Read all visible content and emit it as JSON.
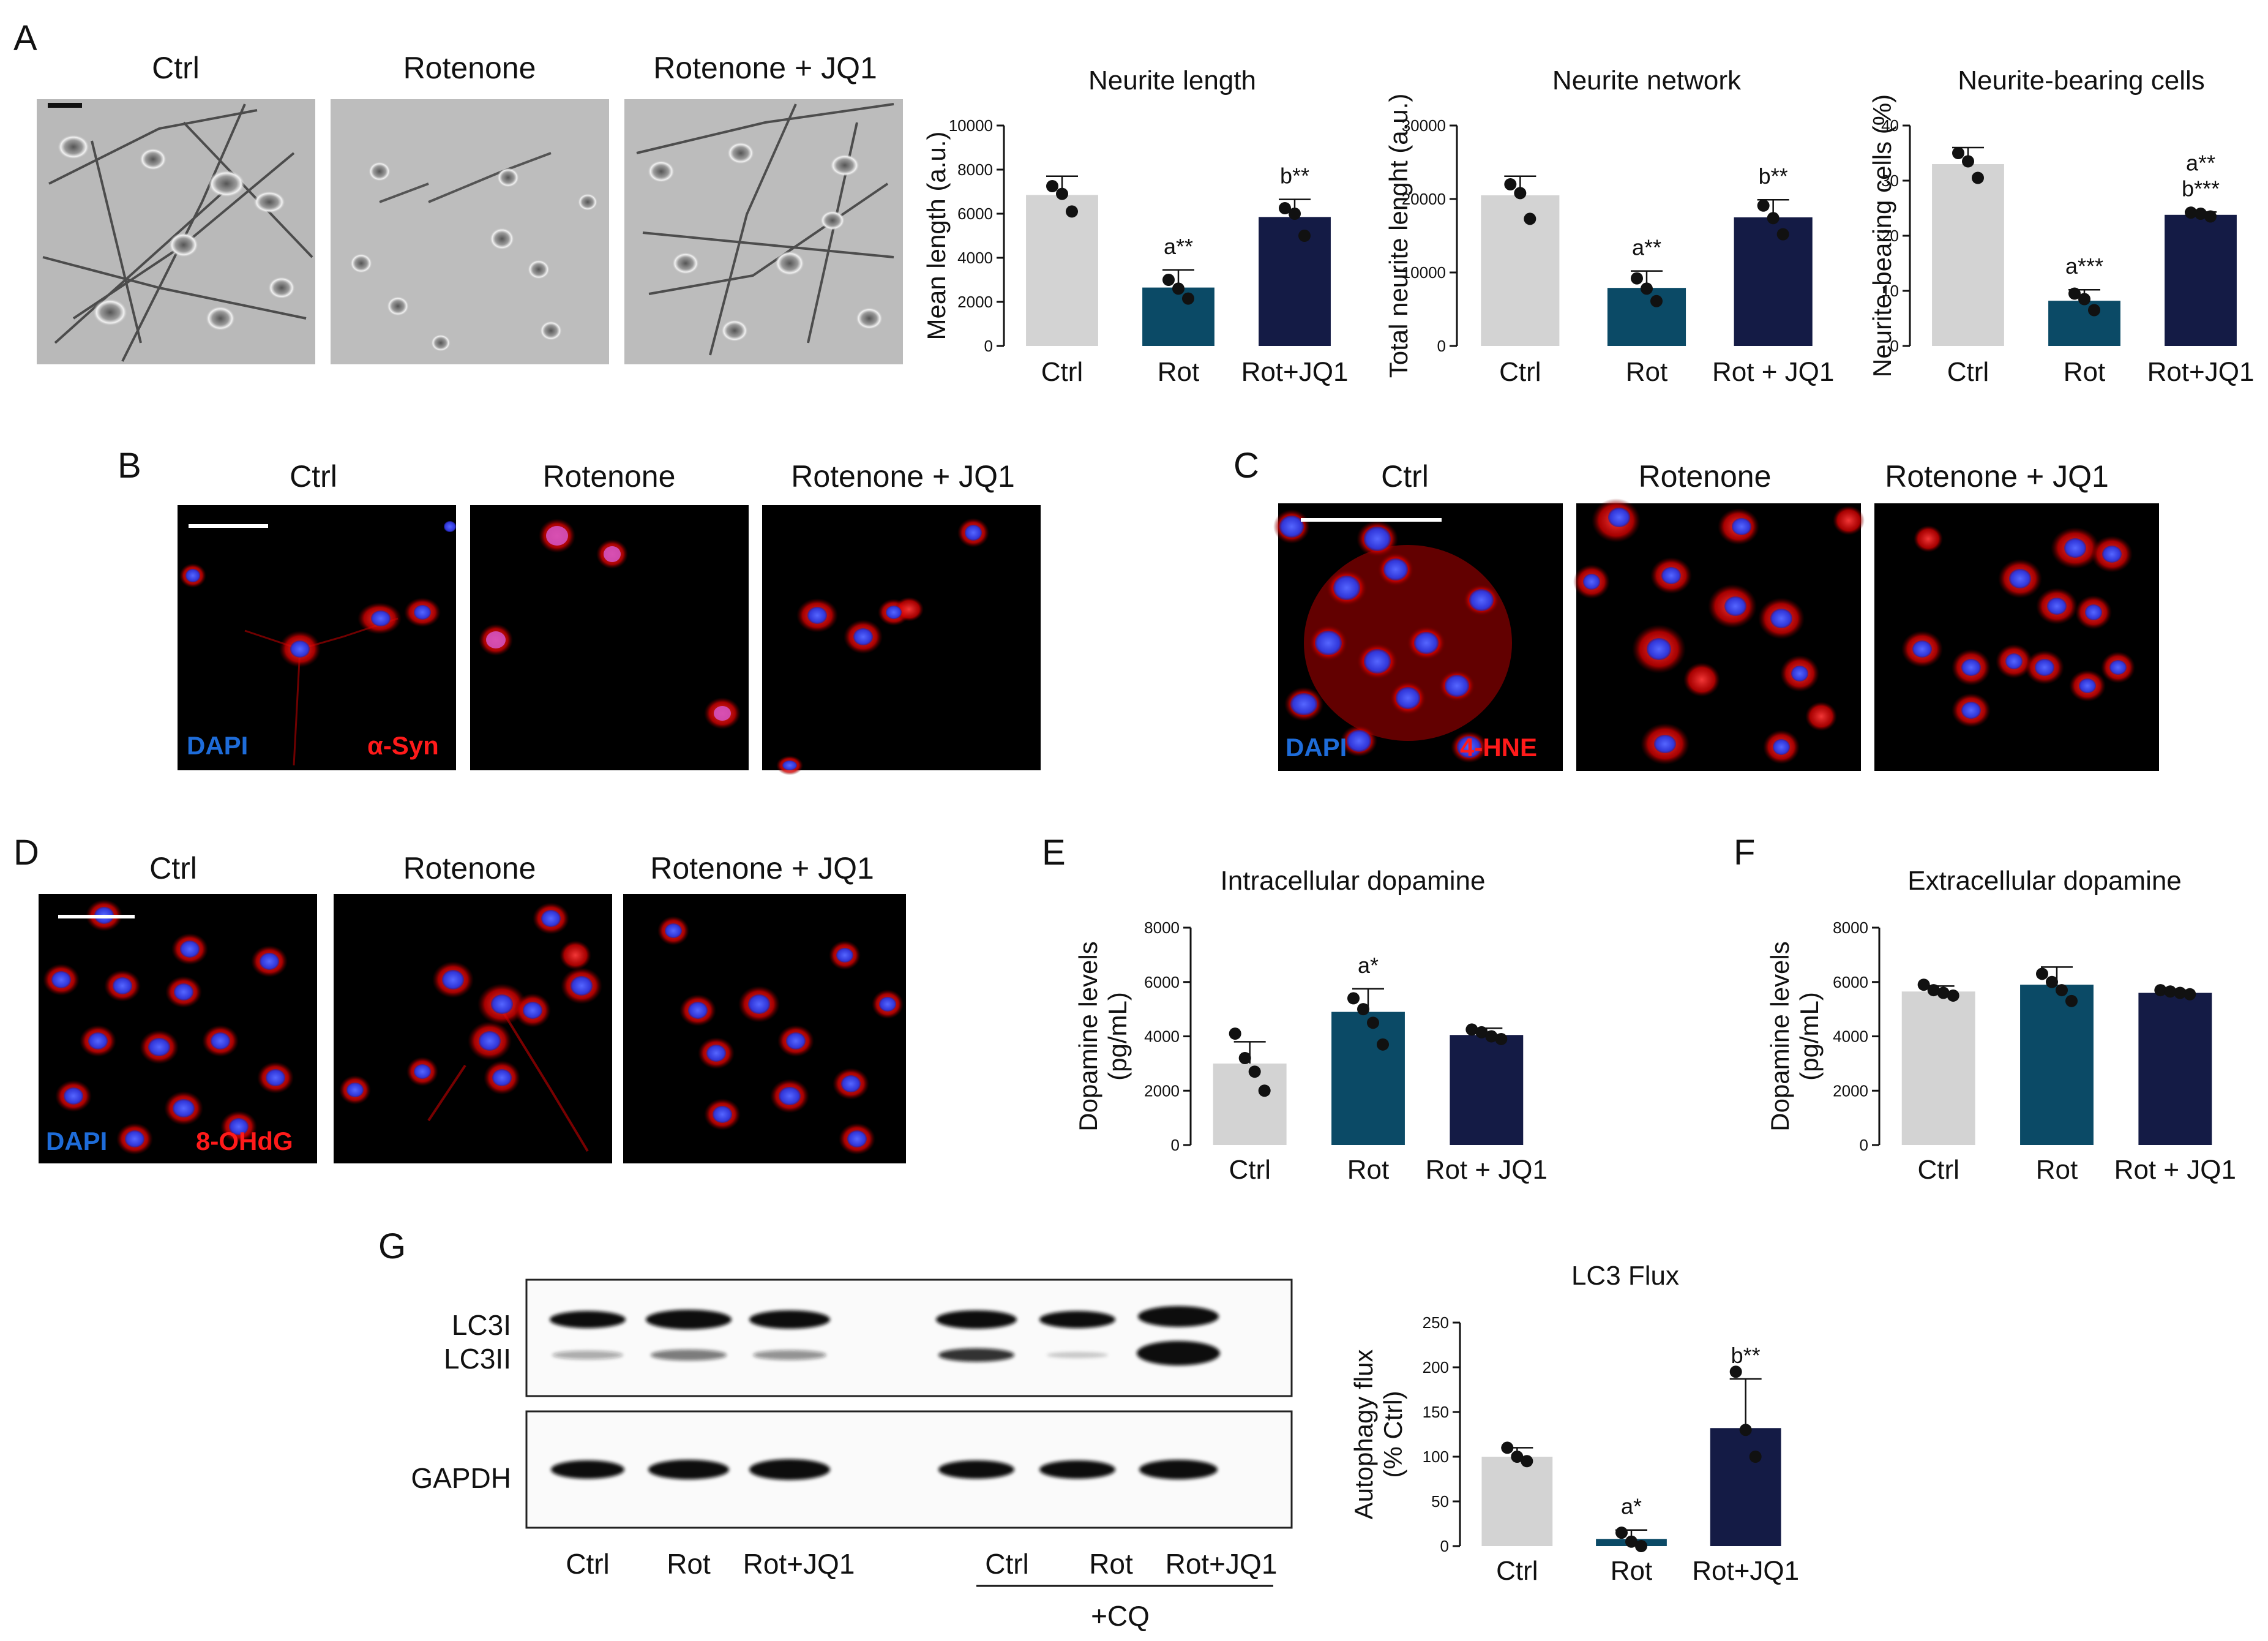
{
  "figure": {
    "panels": {
      "A": {
        "letter": "A",
        "image_titles": [
          "Ctrl",
          "Rotenone",
          "Rotenone + JQ1"
        ]
      },
      "B": {
        "letter": "B",
        "image_titles": [
          "Ctrl",
          "Rotenone",
          "Rotenone + JQ1"
        ],
        "stain_labels": [
          "DAPI",
          "α-Syn"
        ]
      },
      "C": {
        "letter": "C",
        "image_titles": [
          "Ctrl",
          "Rotenone",
          "Rotenone + JQ1"
        ],
        "stain_labels": [
          "DAPI",
          "4-HNE"
        ]
      },
      "D": {
        "letter": "D",
        "image_titles": [
          "Ctrl",
          "Rotenone",
          "Rotenone + JQ1"
        ],
        "stain_labels": [
          "DAPI",
          "8-OHdG"
        ]
      },
      "E": {
        "letter": "E"
      },
      "F": {
        "letter": "F"
      },
      "G": {
        "letter": "G",
        "blot_row_labels": [
          "LC3I",
          "LC3II",
          "GAPDH"
        ],
        "lane_labels": [
          "Ctrl",
          "Rot",
          "Rot+JQ1",
          "Ctrl",
          "Rot",
          "Rot+JQ1"
        ],
        "treatment_label": "+CQ"
      }
    },
    "colors": {
      "ctrl": "#d3d3d3",
      "rot": "#0b4a66",
      "rot_jq1": "#141b45",
      "dapi": "#1e6cd9",
      "red_stain": "#ff1a1a"
    }
  },
  "chart_data": [
    {
      "id": "neurite-length",
      "type": "bar",
      "title": "Neurite length",
      "ylabel": "Mean length (a.u.)",
      "categories": [
        "Ctrl",
        "Rot",
        "Rot+JQ1"
      ],
      "values": [
        6850,
        2650,
        5850
      ],
      "errors": [
        850,
        800,
        800
      ],
      "points": [
        [
          7250,
          6900,
          6100
        ],
        [
          3000,
          2600,
          2150
        ],
        [
          6250,
          6000,
          5000
        ]
      ],
      "annotations": [
        "",
        "a**",
        "b**"
      ],
      "ylim": [
        0,
        10000
      ],
      "yticks": [
        0,
        2000,
        4000,
        6000,
        8000,
        10000
      ]
    },
    {
      "id": "neurite-network",
      "type": "bar",
      "title": "Neurite network",
      "ylabel": "Total neurite lenght (a.u.)",
      "categories": [
        "Ctrl",
        "Rot",
        "Rot + JQ1"
      ],
      "values": [
        20500,
        7900,
        17500
      ],
      "errors": [
        2600,
        2300,
        2400
      ],
      "points": [
        [
          22000,
          20800,
          17300
        ],
        [
          9200,
          7800,
          6100
        ],
        [
          19100,
          17400,
          15200
        ]
      ],
      "annotations": [
        "",
        "a**",
        "b**"
      ],
      "ylim": [
        0,
        30000
      ],
      "yticks": [
        0,
        10000,
        20000,
        30000
      ]
    },
    {
      "id": "neurite-bearing",
      "type": "bar",
      "title": "Neurite-bearing cells",
      "ylabel": "Neurite-bearing cells (%)",
      "categories": [
        "Ctrl",
        "Rot",
        "Rot+JQ1"
      ],
      "values": [
        33,
        8.2,
        23.8
      ],
      "errors": [
        3,
        2,
        0.5
      ],
      "points": [
        [
          35,
          33.5,
          30.5
        ],
        [
          9.5,
          8.5,
          6.5
        ],
        [
          24.2,
          24,
          23.5
        ]
      ],
      "annotations": [
        "",
        "a***",
        "a**\nb***"
      ],
      "ylim": [
        0,
        40
      ],
      "yticks": [
        0,
        10,
        20,
        30,
        40
      ]
    },
    {
      "id": "intracellular-dopamine",
      "type": "bar",
      "title": "Intracellular dopamine",
      "ylabel": "Dopamine levels\n(pg/mL)",
      "categories": [
        "Ctrl",
        "Rot",
        "Rot + JQ1"
      ],
      "values": [
        3000,
        4900,
        4050
      ],
      "errors": [
        800,
        850,
        250
      ],
      "points": [
        [
          4100,
          3200,
          2700,
          2000
        ],
        [
          5400,
          5000,
          4500,
          3700
        ],
        [
          4250,
          4150,
          4000,
          3900
        ]
      ],
      "annotations": [
        "",
        "a*",
        ""
      ],
      "ylim": [
        0,
        8000
      ],
      "yticks": [
        0,
        2000,
        4000,
        6000,
        8000
      ]
    },
    {
      "id": "extracellular-dopamine",
      "type": "bar",
      "title": "Extracellular dopamine",
      "ylabel": "Dopamine levels\n(pg/mL)",
      "categories": [
        "Ctrl",
        "Rot",
        "Rot + JQ1"
      ],
      "values": [
        5650,
        5900,
        5600
      ],
      "errors": [
        200,
        650,
        100
      ],
      "points": [
        [
          5900,
          5700,
          5600,
          5500
        ],
        [
          6300,
          6000,
          5700,
          5300
        ],
        [
          5700,
          5650,
          5600,
          5550
        ]
      ],
      "annotations": [
        "",
        "",
        ""
      ],
      "ylim": [
        0,
        8000
      ],
      "yticks": [
        0,
        2000,
        4000,
        6000,
        8000
      ]
    },
    {
      "id": "lc3-flux",
      "type": "bar",
      "title": "LC3 Flux",
      "ylabel": "Autophagy flux\n(% Ctrl)",
      "categories": [
        "Ctrl",
        "Rot",
        "Rot+JQ1"
      ],
      "values": [
        100,
        8,
        132
      ],
      "errors": [
        10,
        10,
        55
      ],
      "points": [
        [
          110,
          100,
          95
        ],
        [
          15,
          5,
          0
        ],
        [
          195,
          130,
          100
        ]
      ],
      "annotations": [
        "",
        "a*",
        "b**"
      ],
      "ylim": [
        0,
        250
      ],
      "yticks": [
        0,
        50,
        100,
        150,
        200,
        250
      ]
    }
  ]
}
